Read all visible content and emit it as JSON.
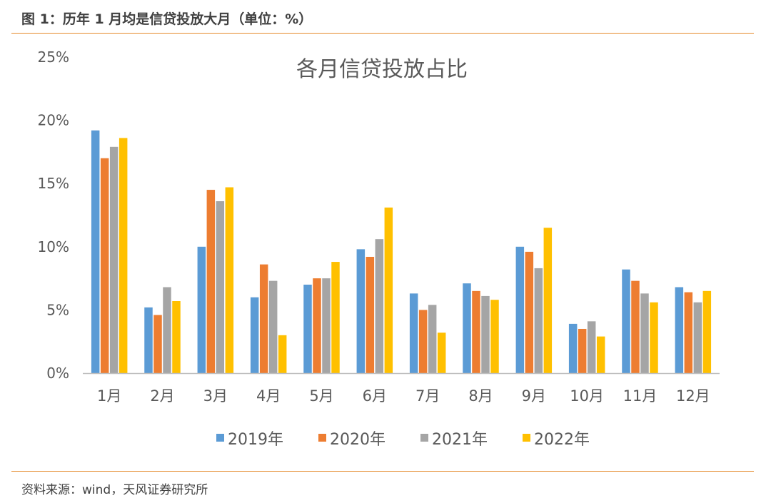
{
  "figure": {
    "caption": "图 1：历年 1 月均是信贷投放大月（单位：%）",
    "source": "资料来源：wind，天风证券研究所"
  },
  "colors": {
    "rule": "#e58a2b",
    "axis": "#bfbfbf",
    "series": [
      "#5b9bd5",
      "#ed7d31",
      "#a5a5a5",
      "#ffc000"
    ]
  },
  "chart_data": {
    "type": "bar",
    "title": "各月信贷投放占比",
    "xlabel": "",
    "ylabel": "",
    "ylim": [
      0,
      25
    ],
    "yticks": [
      0,
      5,
      10,
      15,
      20,
      25
    ],
    "ytick_labels": [
      "0%",
      "5%",
      "10%",
      "15%",
      "20%",
      "25%"
    ],
    "grid": false,
    "legend_position": "bottom",
    "categories": [
      "1月",
      "2月",
      "3月",
      "4月",
      "5月",
      "6月",
      "7月",
      "8月",
      "9月",
      "10月",
      "11月",
      "12月"
    ],
    "series": [
      {
        "name": "2019年",
        "values": [
          19.2,
          5.2,
          10.0,
          6.0,
          7.0,
          9.8,
          6.3,
          7.1,
          10.0,
          3.9,
          8.2,
          6.8
        ]
      },
      {
        "name": "2020年",
        "values": [
          17.0,
          4.6,
          14.5,
          8.6,
          7.5,
          9.2,
          5.0,
          6.5,
          9.6,
          3.5,
          7.3,
          6.4
        ]
      },
      {
        "name": "2021年",
        "values": [
          17.9,
          6.8,
          13.6,
          7.3,
          7.5,
          10.6,
          5.4,
          6.1,
          8.3,
          4.1,
          6.3,
          5.6
        ]
      },
      {
        "name": "2022年",
        "values": [
          18.6,
          5.7,
          14.7,
          3.0,
          8.8,
          13.1,
          3.2,
          5.8,
          11.5,
          2.9,
          5.6,
          6.5
        ]
      }
    ]
  }
}
